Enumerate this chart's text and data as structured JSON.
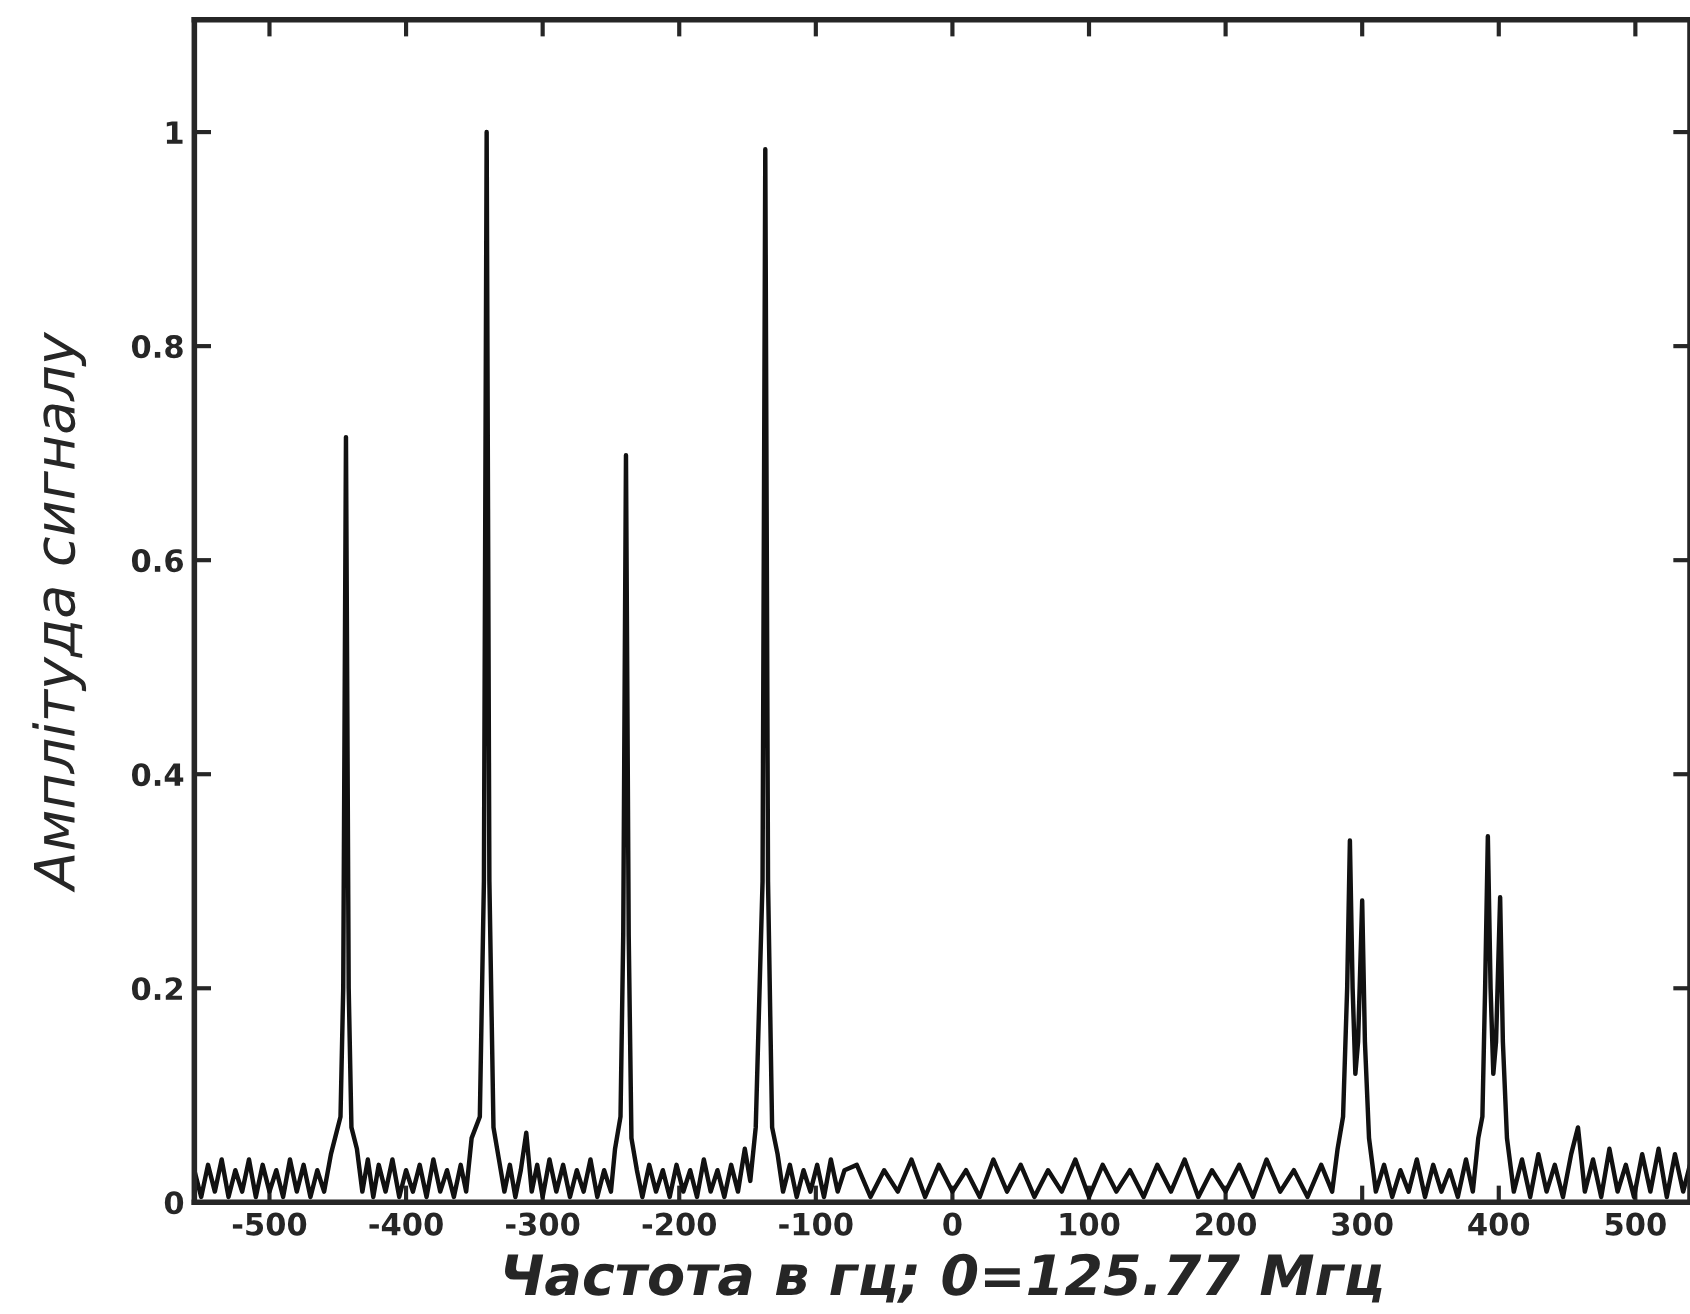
{
  "chart_data": {
    "type": "line",
    "xlabel": "Частота в гц; 0=125.77 Мгц",
    "ylabel": "Амплітуда сигналу",
    "xlim": [
      -555,
      540
    ],
    "ylim": [
      0,
      1.105
    ],
    "xticks": [
      -500,
      -400,
      -300,
      -200,
      -100,
      0,
      100,
      200,
      300,
      400,
      500
    ],
    "yticks": [
      0,
      0.2,
      0.4,
      0.6,
      0.8,
      1
    ],
    "grid": false,
    "marker": "none",
    "line_style": "solid",
    "series": [
      {
        "color": "#111111",
        "x": [
          -555,
          -550,
          -545,
          -540,
          -535,
          -530,
          -525,
          -520,
          -515,
          -510,
          -505,
          -500,
          -495,
          -490,
          -485,
          -480,
          -475,
          -470,
          -465,
          -460,
          -455,
          -452,
          -448,
          -446,
          -444,
          -442,
          -440,
          -436,
          -432,
          -428,
          -424,
          -420,
          -415,
          -410,
          -405,
          -400,
          -395,
          -390,
          -385,
          -380,
          -375,
          -370,
          -365,
          -360,
          -356,
          -352,
          -346,
          -343,
          -341,
          -339,
          -336,
          -332,
          -328,
          -324,
          -320,
          -316,
          -312,
          -308,
          -304,
          -300,
          -295,
          -290,
          -285,
          -280,
          -275,
          -270,
          -265,
          -260,
          -255,
          -250,
          -247,
          -243,
          -241,
          -239,
          -237,
          -235,
          -231,
          -227,
          -222,
          -217,
          -212,
          -207,
          -202,
          -197,
          -192,
          -187,
          -182,
          -177,
          -172,
          -167,
          -162,
          -157,
          -152,
          -148,
          -144,
          -139,
          -137,
          -135,
          -132,
          -128,
          -124,
          -119,
          -114,
          -109,
          -104,
          -99,
          -94,
          -89,
          -84,
          -79,
          -70,
          -60,
          -50,
          -40,
          -30,
          -20,
          -10,
          0,
          10,
          20,
          30,
          40,
          50,
          60,
          70,
          80,
          90,
          100,
          110,
          120,
          130,
          140,
          150,
          160,
          170,
          180,
          190,
          200,
          210,
          220,
          230,
          240,
          250,
          260,
          270,
          278,
          282,
          286,
          289,
          291,
          293,
          295,
          297,
          300,
          302,
          305,
          310,
          316,
          322,
          328,
          334,
          340,
          346,
          352,
          358,
          364,
          370,
          376,
          381,
          385,
          388,
          390,
          392,
          394,
          396,
          398,
          401,
          403,
          406,
          411,
          417,
          423,
          429,
          435,
          441,
          447,
          453,
          458,
          463,
          469,
          475,
          481,
          487,
          493,
          499,
          505,
          511,
          517,
          523,
          529,
          535,
          540
        ],
        "values": [
          0.03,
          0.005,
          0.035,
          0.01,
          0.04,
          0.005,
          0.03,
          0.01,
          0.04,
          0.005,
          0.035,
          0.01,
          0.03,
          0.005,
          0.04,
          0.01,
          0.035,
          0.005,
          0.03,
          0.01,
          0.045,
          0.06,
          0.08,
          0.2,
          0.715,
          0.2,
          0.07,
          0.05,
          0.01,
          0.04,
          0.005,
          0.035,
          0.01,
          0.04,
          0.005,
          0.03,
          0.01,
          0.035,
          0.005,
          0.04,
          0.01,
          0.03,
          0.005,
          0.035,
          0.01,
          0.06,
          0.08,
          0.3,
          1.0,
          0.3,
          0.07,
          0.04,
          0.01,
          0.035,
          0.005,
          0.03,
          0.065,
          0.01,
          0.035,
          0.005,
          0.04,
          0.01,
          0.035,
          0.005,
          0.03,
          0.01,
          0.04,
          0.005,
          0.03,
          0.01,
          0.05,
          0.08,
          0.25,
          0.698,
          0.25,
          0.06,
          0.03,
          0.005,
          0.035,
          0.01,
          0.03,
          0.005,
          0.035,
          0.01,
          0.03,
          0.005,
          0.04,
          0.01,
          0.03,
          0.005,
          0.035,
          0.01,
          0.05,
          0.02,
          0.07,
          0.3,
          0.984,
          0.3,
          0.07,
          0.045,
          0.01,
          0.035,
          0.005,
          0.03,
          0.01,
          0.035,
          0.005,
          0.04,
          0.01,
          0.03,
          0.035,
          0.005,
          0.03,
          0.01,
          0.04,
          0.005,
          0.035,
          0.01,
          0.03,
          0.005,
          0.04,
          0.01,
          0.035,
          0.005,
          0.03,
          0.01,
          0.04,
          0.005,
          0.035,
          0.01,
          0.03,
          0.005,
          0.035,
          0.01,
          0.04,
          0.005,
          0.03,
          0.01,
          0.035,
          0.005,
          0.04,
          0.01,
          0.03,
          0.005,
          0.035,
          0.01,
          0.05,
          0.08,
          0.2,
          0.338,
          0.2,
          0.12,
          0.15,
          0.282,
          0.15,
          0.06,
          0.01,
          0.035,
          0.005,
          0.03,
          0.01,
          0.04,
          0.005,
          0.035,
          0.01,
          0.03,
          0.005,
          0.04,
          0.01,
          0.06,
          0.08,
          0.2,
          0.342,
          0.2,
          0.12,
          0.15,
          0.285,
          0.15,
          0.06,
          0.01,
          0.04,
          0.005,
          0.045,
          0.01,
          0.035,
          0.005,
          0.045,
          0.07,
          0.01,
          0.04,
          0.005,
          0.05,
          0.01,
          0.035,
          0.005,
          0.045,
          0.01,
          0.05,
          0.005,
          0.045,
          0.01,
          0.035
        ]
      }
    ]
  }
}
